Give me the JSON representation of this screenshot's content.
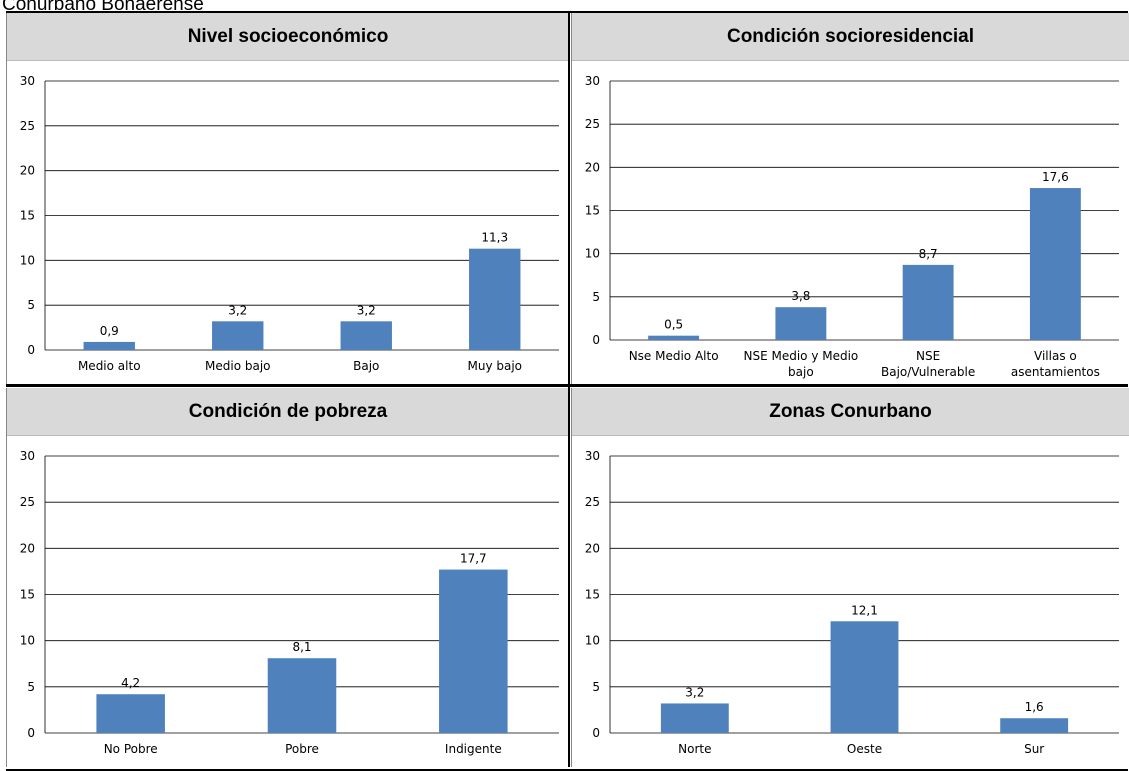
{
  "caption": "Conurbano Bonaerense",
  "colors": {
    "bar": "#4f81bd",
    "header": "#d9d9d9",
    "grid": "#000000"
  },
  "chart_data": [
    {
      "type": "bar",
      "title": "Nivel socioeconómico",
      "categories": [
        "Medio alto",
        "Medio bajo",
        "Bajo",
        "Muy bajo"
      ],
      "values": [
        0.9,
        3.2,
        3.2,
        11.3
      ],
      "value_labels": [
        "0,9",
        "3,2",
        "3,2",
        "11,3"
      ],
      "ylim": [
        0,
        30
      ],
      "yticks": [
        0,
        5,
        10,
        15,
        20,
        25,
        30
      ],
      "grid": true
    },
    {
      "type": "bar",
      "title": "Condición socioresidencial",
      "categories": [
        [
          "Nse Medio Alto"
        ],
        [
          "NSE Medio y Medio",
          "bajo"
        ],
        [
          "NSE",
          "Bajo/Vulnerable"
        ],
        [
          "Villas o",
          "asentamientos"
        ]
      ],
      "values": [
        0.5,
        3.8,
        8.7,
        17.6
      ],
      "value_labels": [
        "0,5",
        "3,8",
        "8,7",
        "17,6"
      ],
      "ylim": [
        0,
        30
      ],
      "yticks": [
        0,
        5,
        10,
        15,
        20,
        25,
        30
      ],
      "grid": true
    },
    {
      "type": "bar",
      "title": "Condición de pobreza",
      "categories": [
        "No Pobre",
        "Pobre",
        "Indigente"
      ],
      "values": [
        4.2,
        8.1,
        17.7
      ],
      "value_labels": [
        "4,2",
        "8,1",
        "17,7"
      ],
      "ylim": [
        0,
        30
      ],
      "yticks": [
        0,
        5,
        10,
        15,
        20,
        25,
        30
      ],
      "grid": true
    },
    {
      "type": "bar",
      "title": "Zonas Conurbano",
      "categories": [
        "Norte",
        "Oeste",
        "Sur"
      ],
      "values": [
        3.2,
        12.1,
        1.6
      ],
      "value_labels": [
        "3,2",
        "12,1",
        "1,6"
      ],
      "ylim": [
        0,
        30
      ],
      "yticks": [
        0,
        5,
        10,
        15,
        20,
        25,
        30
      ],
      "grid": true
    }
  ]
}
